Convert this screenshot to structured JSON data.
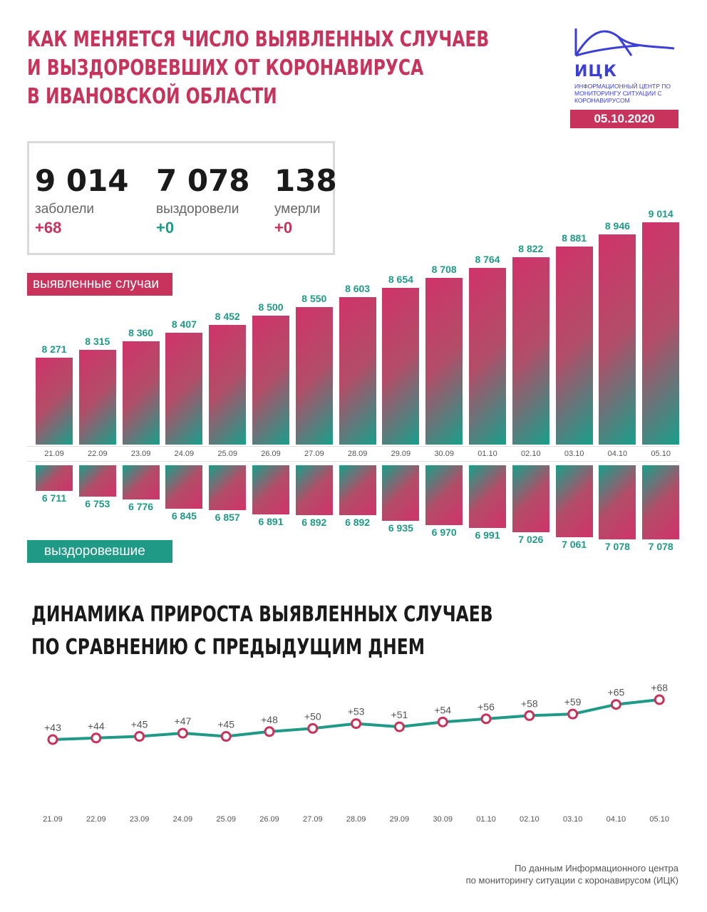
{
  "header": {
    "title_lines": [
      "КАК МЕНЯЕТСЯ ЧИСЛО ВЫЯВЛЕННЫХ СЛУЧАЕВ",
      "И ВЫЗДОРОВЕВШИХ ОТ КОРОНАВИРУСА",
      "В ИВАНОВСКОЙ ОБЛАСТИ"
    ],
    "logo_text": "ИЦК",
    "logo_sub": "ИНФОРМАЦИОННЫЙ ЦЕНТР ПО МОНИТОРИНГУ СИТУАЦИИ С КОРОНАВИРУСОМ",
    "date": "05.10.2020"
  },
  "stats": {
    "infected": {
      "value": "9 014",
      "label": "заболели",
      "delta": "+68"
    },
    "recovered": {
      "value": "7 078",
      "label": "выздоровели",
      "delta": "+0"
    },
    "deaths": {
      "value": "138",
      "label": "умерли",
      "delta": "+0"
    }
  },
  "tags": {
    "cases": "выявленные случаи",
    "recovered": "выздоровевшие"
  },
  "chart_data": [
    {
      "type": "bar",
      "categories": [
        "21.09",
        "22.09",
        "23.09",
        "24.09",
        "25.09",
        "26.09",
        "27.09",
        "28.09",
        "29.09",
        "30.09",
        "01.10",
        "02.10",
        "03.10",
        "04.10",
        "05.10"
      ],
      "series": [
        {
          "name": "выявленные случаи",
          "values": [
            8271,
            8315,
            8360,
            8407,
            8452,
            8500,
            8550,
            8603,
            8654,
            8708,
            8764,
            8822,
            8881,
            8946,
            9014
          ],
          "labels": [
            "8 271",
            "8 315",
            "8 360",
            "8 407",
            "8 452",
            "8 500",
            "8 550",
            "8 603",
            "8 654",
            "8 708",
            "8 764",
            "8 822",
            "8 881",
            "8 946",
            "9 014"
          ]
        },
        {
          "name": "выздоровевшие",
          "values": [
            6711,
            6753,
            6776,
            6845,
            6857,
            6891,
            6892,
            6892,
            6935,
            6970,
            6991,
            7026,
            7061,
            7078,
            7078
          ],
          "labels": [
            "6 711",
            "6 753",
            "6 776",
            "6 845",
            "6 857",
            "6 891",
            "6 892",
            "6 892",
            "6 935",
            "6 970",
            "6 991",
            "7 026",
            "7 061",
            "7 078",
            "7 078"
          ]
        }
      ]
    },
    {
      "type": "line",
      "title": "ДИНАМИКА ПРИРОСТА ВЫЯВЛЕННЫХ СЛУЧАЕВ ПО СРАВНЕНИЮ С ПРЕДЫДУЩИМ ДНЕМ",
      "title_lines": [
        "ДИНАМИКА ПРИРОСТА ВЫЯВЛЕННЫХ СЛУЧАЕВ",
        "ПО СРАВНЕНИЮ С ПРЕДЫДУЩИМ ДНЕМ"
      ],
      "categories": [
        "21.09",
        "22.09",
        "23.09",
        "24.09",
        "25.09",
        "26.09",
        "27.09",
        "28.09",
        "29.09",
        "30.09",
        "01.10",
        "02.10",
        "03.10",
        "04.10",
        "05.10"
      ],
      "values": [
        43,
        44,
        45,
        47,
        45,
        48,
        50,
        53,
        51,
        54,
        56,
        58,
        59,
        65,
        68
      ],
      "labels": [
        "+43",
        "+44",
        "+45",
        "+47",
        "+45",
        "+48",
        "+50",
        "+53",
        "+51",
        "+54",
        "+56",
        "+58",
        "+59",
        "+65",
        "+68"
      ]
    }
  ],
  "footer": {
    "line1": "По данным Информационного центра",
    "line2": "по мониторингу ситуации с коронавирусом (ИЦК)"
  },
  "colors": {
    "accent": "#c8335c",
    "green": "#1f9a86",
    "logo": "#3b3fd8"
  }
}
